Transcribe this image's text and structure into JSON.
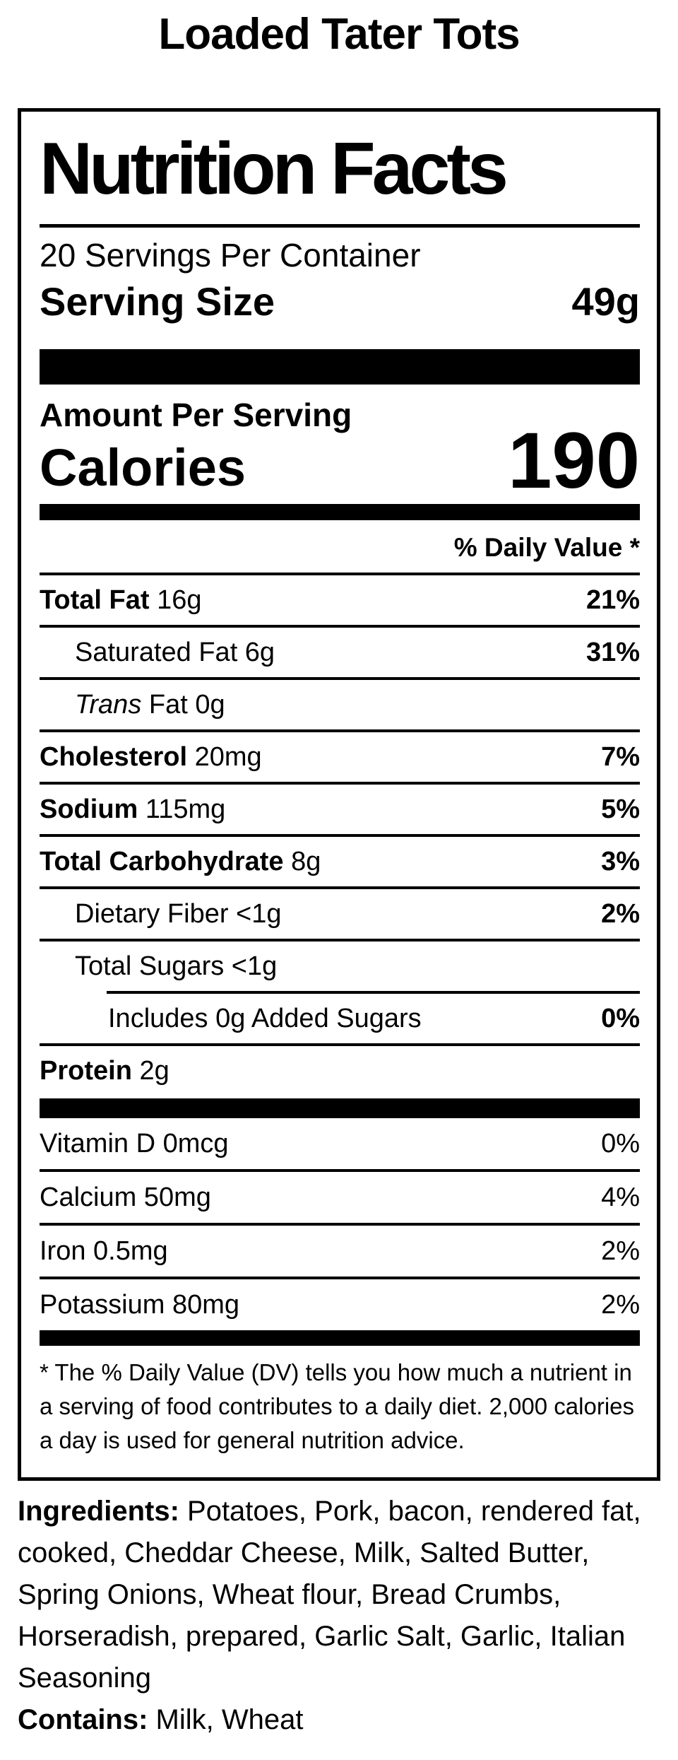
{
  "page_title": "Loaded Tater Tots",
  "label": {
    "heading": "Nutrition Facts",
    "servings_per_container": "20 Servings Per Container",
    "serving_size": {
      "label": "Serving Size",
      "value": "49g"
    },
    "amount_per_serving_label": "Amount Per Serving",
    "calories": {
      "label": "Calories",
      "value": "190"
    },
    "daily_value_header": "% Daily Value *",
    "nutrient_rows": [
      {
        "parts": [
          {
            "text": "Total Fat",
            "bold": true
          },
          {
            "text": " 16g"
          }
        ],
        "pct": "21%",
        "pct_bold": true,
        "indent": 0,
        "separator": "full"
      },
      {
        "parts": [
          {
            "text": "Saturated Fat 6g"
          }
        ],
        "pct": "31%",
        "pct_bold": true,
        "indent": 1,
        "separator": "full"
      },
      {
        "parts": [
          {
            "text": "Trans",
            "italic": true
          },
          {
            "text": " Fat 0g"
          }
        ],
        "pct": "",
        "pct_bold": false,
        "indent": 1,
        "separator": "full"
      },
      {
        "parts": [
          {
            "text": "Cholesterol",
            "bold": true
          },
          {
            "text": " 20mg"
          }
        ],
        "pct": "7%",
        "pct_bold": true,
        "indent": 0,
        "separator": "full"
      },
      {
        "parts": [
          {
            "text": "Sodium",
            "bold": true
          },
          {
            "text": " 115mg"
          }
        ],
        "pct": "5%",
        "pct_bold": true,
        "indent": 0,
        "separator": "full"
      },
      {
        "parts": [
          {
            "text": "Total Carbohydrate",
            "bold": true
          },
          {
            "text": " 8g"
          }
        ],
        "pct": "3%",
        "pct_bold": true,
        "indent": 0,
        "separator": "full"
      },
      {
        "parts": [
          {
            "text": "Dietary Fiber <1g"
          }
        ],
        "pct": "2%",
        "pct_bold": true,
        "indent": 1,
        "separator": "full"
      },
      {
        "parts": [
          {
            "text": "Total Sugars <1g"
          }
        ],
        "pct": "",
        "pct_bold": false,
        "indent": 1,
        "separator": "full"
      },
      {
        "parts": [
          {
            "text": "Includes 0g Added Sugars"
          }
        ],
        "pct": "0%",
        "pct_bold": true,
        "indent": 2,
        "separator": "inset"
      },
      {
        "parts": [
          {
            "text": "Protein",
            "bold": true
          },
          {
            "text": " 2g"
          }
        ],
        "pct": "",
        "pct_bold": false,
        "indent": 0,
        "separator": "full"
      }
    ],
    "vitamin_rows": [
      {
        "parts": [
          {
            "text": "Vitamin D 0mcg"
          }
        ],
        "pct": "0%",
        "pct_bold": false,
        "indent": 0,
        "separator": "none"
      },
      {
        "parts": [
          {
            "text": "Calcium 50mg"
          }
        ],
        "pct": "4%",
        "pct_bold": false,
        "indent": 0,
        "separator": "full"
      },
      {
        "parts": [
          {
            "text": "Iron 0.5mg"
          }
        ],
        "pct": "2%",
        "pct_bold": false,
        "indent": 0,
        "separator": "full"
      },
      {
        "parts": [
          {
            "text": "Potassium 80mg"
          }
        ],
        "pct": "2%",
        "pct_bold": false,
        "indent": 0,
        "separator": "full"
      }
    ],
    "footnote": "* The % Daily Value (DV) tells you how much a nutrient in a serving of food contributes to a daily diet. 2,000 calories a day is used for general nutrition advice."
  },
  "ingredients": {
    "label": "Ingredients:",
    "text": " Potatoes, Pork, bacon, rendered fat, cooked, Cheddar Cheese, Milk, Salted Butter, Spring Onions, Wheat flour, Bread Crumbs, Horseradish, prepared, Garlic Salt, Garlic, Italian Seasoning",
    "contains_label": "Contains:",
    "contains_text": " Milk, Wheat"
  },
  "colors": {
    "text": "#000000",
    "background": "#ffffff"
  }
}
